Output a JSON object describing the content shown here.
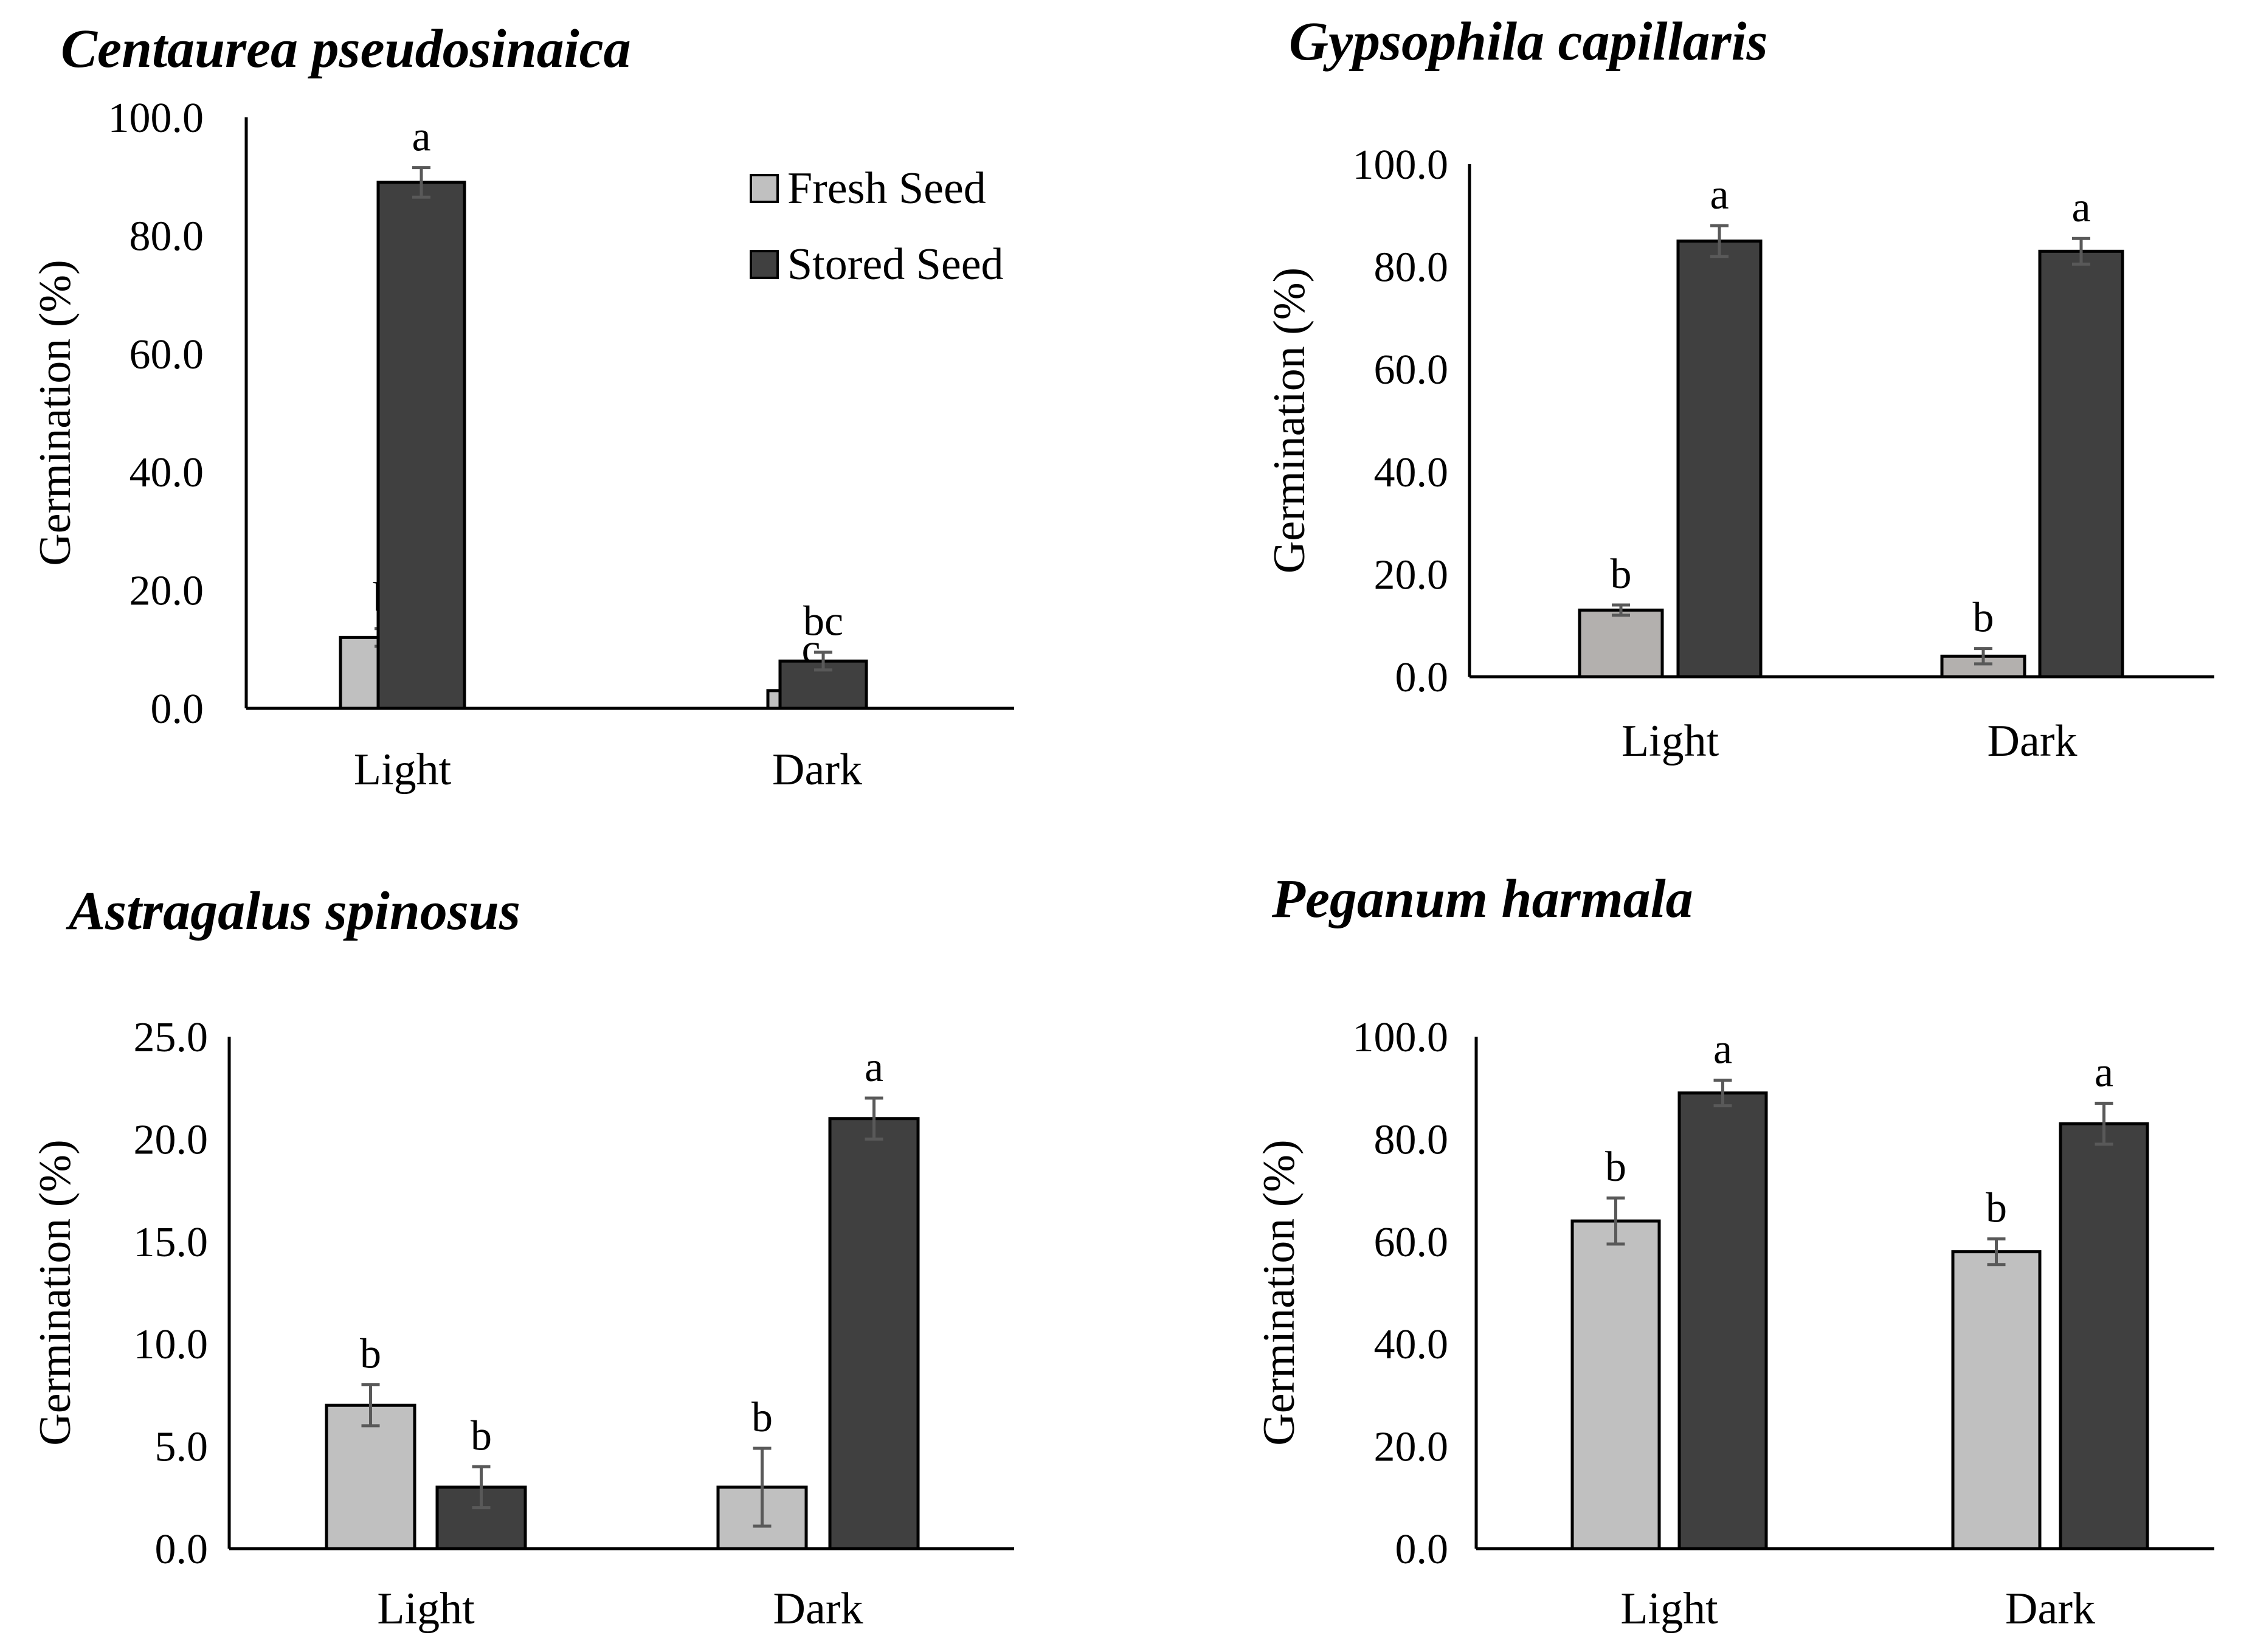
{
  "figure": {
    "legend": {
      "entries": [
        {
          "label": "Fresh Seed",
          "color": "#c0c0c0"
        },
        {
          "label": "Stored Seed",
          "color": "#404040"
        }
      ]
    }
  },
  "chart_data": [
    {
      "type": "bar",
      "title": "Centaurea pseudosinaica",
      "xlabel": "",
      "ylabel": "Germination (%)",
      "categories": [
        "Light",
        "Dark"
      ],
      "ylim": [
        0,
        100
      ],
      "yticks": [
        "0.0",
        "20.0",
        "40.0",
        "60.0",
        "80.0",
        "100.0"
      ],
      "yticks_values": [
        0,
        20,
        40,
        60,
        80,
        100
      ],
      "series": [
        {
          "name": "Fresh Seed",
          "color": "#c0c0c0",
          "values": [
            12,
            3
          ],
          "errors": [
            1.5,
            1.8
          ],
          "letters": [
            "b",
            "c"
          ]
        },
        {
          "name": "Stored Seed",
          "color": "#404040",
          "values": [
            89,
            8
          ],
          "errors": [
            2.5,
            1.5
          ],
          "letters": [
            "a",
            "bc"
          ]
        }
      ],
      "legend": "top-right"
    },
    {
      "type": "bar",
      "title": "Gypsophila capillaris",
      "xlabel": "",
      "ylabel": "Germination (%)",
      "categories": [
        "Light",
        "Dark"
      ],
      "ylim": [
        0,
        100
      ],
      "yticks": [
        "0.0",
        "20.0",
        "40.0",
        "60.0",
        "80.0",
        "100.0"
      ],
      "yticks_values": [
        0,
        20,
        40,
        60,
        80,
        100
      ],
      "series": [
        {
          "name": "Fresh Seed",
          "color": "#b3b0ae",
          "values": [
            13,
            4
          ],
          "errors": [
            1.0,
            1.5
          ],
          "letters": [
            "b",
            "b"
          ]
        },
        {
          "name": "Stored Seed",
          "color": "#404040",
          "values": [
            85,
            83
          ],
          "errors": [
            3.0,
            2.5
          ],
          "letters": [
            "a",
            "a"
          ]
        }
      ]
    },
    {
      "type": "bar",
      "title": "Astragalus spinosus",
      "xlabel": "",
      "ylabel": "Germination (%)",
      "categories": [
        "Light",
        "Dark"
      ],
      "ylim": [
        0,
        25
      ],
      "yticks": [
        "0.0",
        "5.0",
        "10.0",
        "15.0",
        "20.0",
        "25.0"
      ],
      "yticks_values": [
        0,
        5,
        10,
        15,
        20,
        25
      ],
      "series": [
        {
          "name": "Fresh Seed",
          "color": "#c0c0c0",
          "values": [
            7,
            3
          ],
          "errors": [
            1.0,
            1.9
          ],
          "letters": [
            "b",
            "b"
          ]
        },
        {
          "name": "Stored Seed",
          "color": "#404040",
          "values": [
            3,
            21
          ],
          "errors": [
            1.0,
            1.0
          ],
          "letters": [
            "b",
            "a"
          ]
        }
      ]
    },
    {
      "type": "bar",
      "title": "Peganum harmala",
      "xlabel": "",
      "ylabel": "Germination (%)",
      "categories": [
        "Light",
        "Dark"
      ],
      "ylim": [
        0,
        100
      ],
      "yticks": [
        "0.0",
        "20.0",
        "40.0",
        "60.0",
        "80.0",
        "100.0"
      ],
      "yticks_values": [
        0,
        20,
        40,
        60,
        80,
        100
      ],
      "series": [
        {
          "name": "Fresh Seed",
          "color": "#c0c0c0",
          "values": [
            64,
            58
          ],
          "errors": [
            4.5,
            2.5
          ],
          "letters": [
            "b",
            "b"
          ]
        },
        {
          "name": "Stored Seed",
          "color": "#404040",
          "values": [
            89,
            83
          ],
          "errors": [
            2.5,
            4.0
          ],
          "letters": [
            "a",
            "a"
          ]
        }
      ]
    }
  ]
}
